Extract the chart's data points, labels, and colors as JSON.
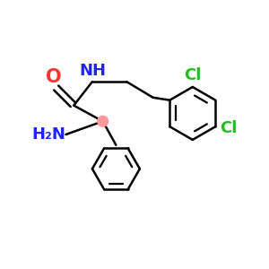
{
  "background_color": "#ffffff",
  "atom_colors": {
    "O": "#ff3333",
    "N": "#2222ff",
    "Cl": "#22bb22",
    "C": "#000000",
    "chiral_C": "#ff9999"
  },
  "bond_color": "#000000",
  "bond_width": 1.8,
  "font_size_atoms": 13
}
